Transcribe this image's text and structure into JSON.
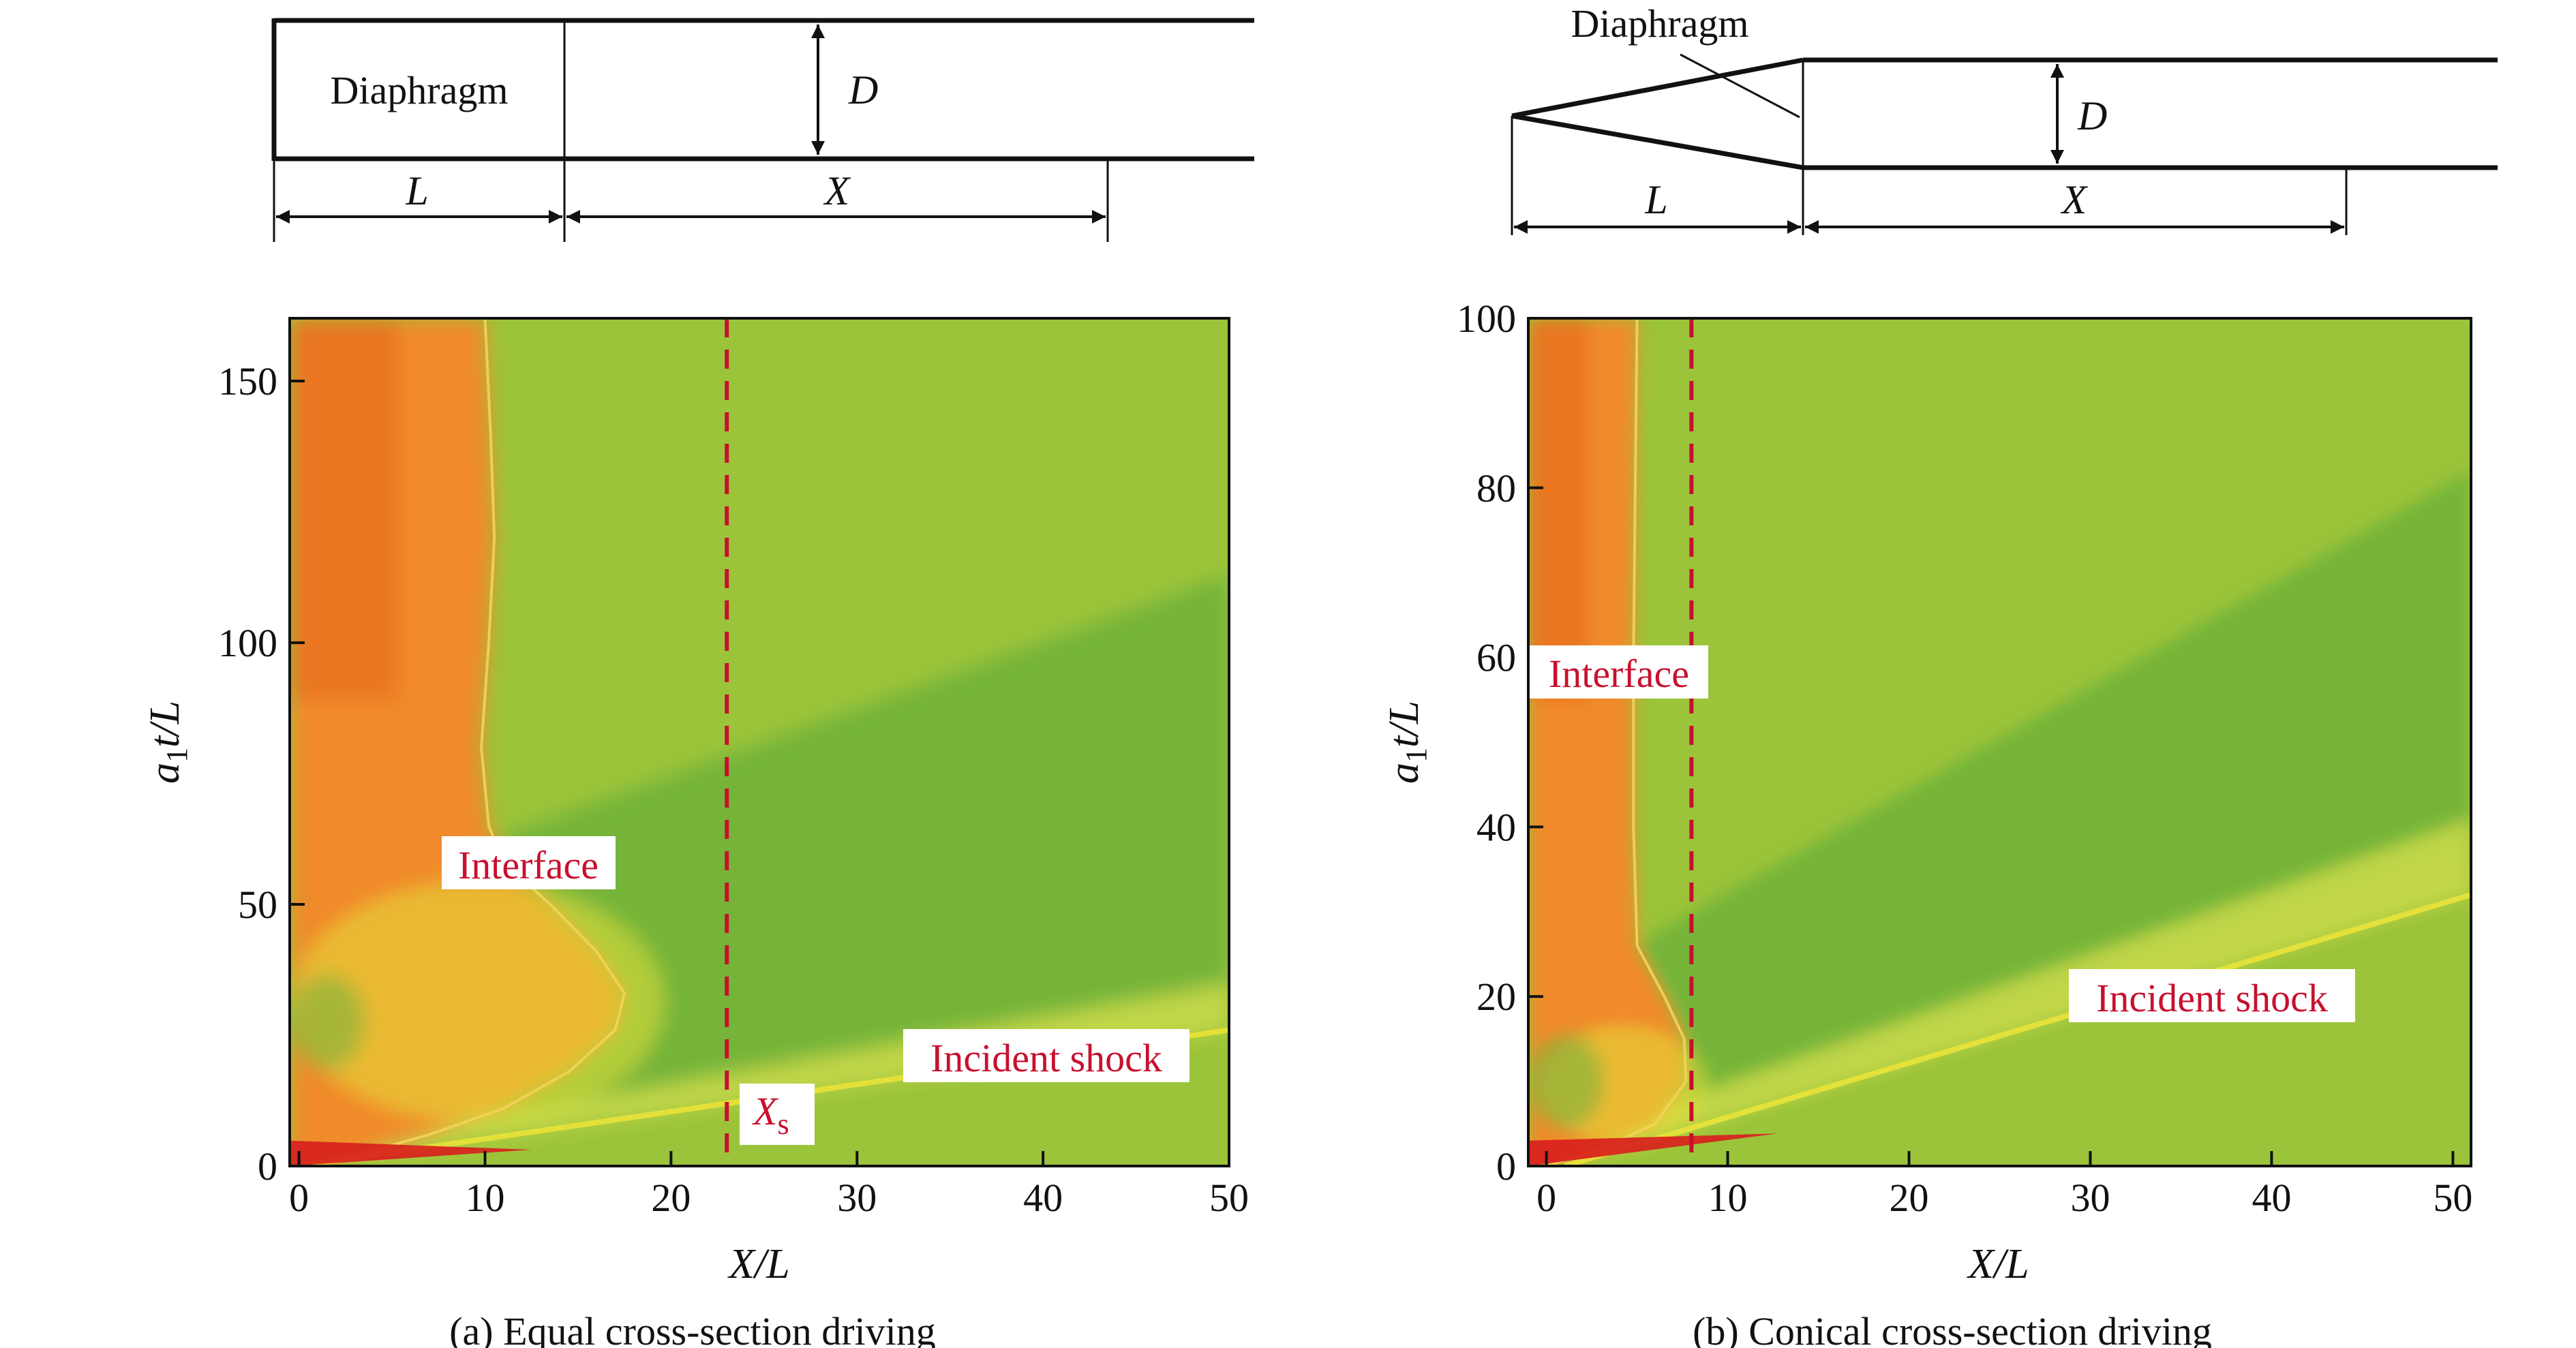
{
  "colors": {
    "annotation": "#c8102e",
    "driver_dark": "#e25d12",
    "driver": "#f08a2c",
    "driven": "#9cc43a",
    "driven_dark": "#6fb23a",
    "incident_band": "#e6e23a",
    "hot": "#d81d1d"
  },
  "panel_a": {
    "schematic": {
      "diaphragm": "Diaphragm",
      "diameter": "D",
      "length": "L",
      "distance": "X"
    },
    "annotations": {
      "interface": "Interface",
      "incident_shock": "Incident shock",
      "xs_main": "X",
      "xs_sub": "s"
    },
    "caption": "(a) Equal cross-section driving"
  },
  "panel_b": {
    "schematic": {
      "diaphragm": "Diaphragm",
      "diameter": "D",
      "length": "L",
      "distance": "X"
    },
    "annotations": {
      "interface": "Interface",
      "incident_shock": "Incident shock"
    },
    "caption": "(b) Conical cross-section driving"
  },
  "chart_data": [
    {
      "type": "heatmap",
      "title": "(a) Equal cross-section driving",
      "xlabel": "X/L",
      "ylabel": "a1t/L",
      "ylabel_main": "a",
      "ylabel_sub": "1",
      "ylabel_rest": "t/L",
      "xlim": [
        -0.5,
        50
      ],
      "ylim": [
        0,
        162
      ],
      "xticks": [
        0,
        10,
        20,
        30,
        40,
        50
      ],
      "yticks": [
        0,
        50,
        100,
        150
      ],
      "xtick_labels": [
        "0",
        "10",
        "20",
        "30",
        "40",
        "50"
      ],
      "ytick_labels": [
        "0",
        "50",
        "100",
        "150"
      ],
      "dashed_line_x": 23,
      "interface_curve": [
        [
          0,
          0
        ],
        [
          3,
          2
        ],
        [
          7,
          6
        ],
        [
          11,
          11
        ],
        [
          14.5,
          18
        ],
        [
          17,
          26
        ],
        [
          17.5,
          33
        ],
        [
          16,
          41
        ],
        [
          13.5,
          50
        ],
        [
          11,
          58
        ],
        [
          10.2,
          65
        ],
        [
          9.8,
          80
        ],
        [
          10.2,
          100
        ],
        [
          10.5,
          120
        ],
        [
          10.3,
          140
        ],
        [
          10,
          162
        ]
      ],
      "incident_shock": [
        [
          0,
          0
        ],
        [
          50,
          26
        ]
      ],
      "expansion_head": [
        [
          0,
          0
        ],
        [
          -0.5,
          22
        ]
      ],
      "reflected_wave": [
        [
          10,
          62
        ],
        [
          50,
          113
        ]
      ]
    },
    {
      "type": "heatmap",
      "title": "(b) Conical cross-section driving",
      "xlabel": "X/L",
      "ylabel": "a1t/L",
      "ylabel_main": "a",
      "ylabel_sub": "1",
      "ylabel_rest": "t/L",
      "xlim": [
        -1,
        51
      ],
      "ylim": [
        0,
        100
      ],
      "xticks": [
        0,
        10,
        20,
        30,
        40,
        50
      ],
      "yticks": [
        0,
        20,
        40,
        60,
        80,
        100
      ],
      "xtick_labels": [
        "0",
        "10",
        "20",
        "30",
        "40",
        "50"
      ],
      "ytick_labels": [
        "0",
        "20",
        "40",
        "60",
        "80",
        "100"
      ],
      "dashed_line_x": 8,
      "interface_curve": [
        [
          0,
          0
        ],
        [
          3,
          2
        ],
        [
          6,
          5
        ],
        [
          7.7,
          10
        ],
        [
          7.6,
          15
        ],
        [
          6.5,
          20
        ],
        [
          5,
          26
        ],
        [
          4.8,
          40
        ],
        [
          4.8,
          60
        ],
        [
          4.9,
          80
        ],
        [
          5,
          100
        ]
      ],
      "incident_shock": [
        [
          1,
          0
        ],
        [
          51,
          32
        ]
      ],
      "expansion_head": [
        [
          0,
          0
        ],
        [
          -0.5,
          100
        ]
      ],
      "reflected_wave": [
        [
          4.8,
          26
        ],
        [
          51,
          82
        ]
      ]
    }
  ]
}
